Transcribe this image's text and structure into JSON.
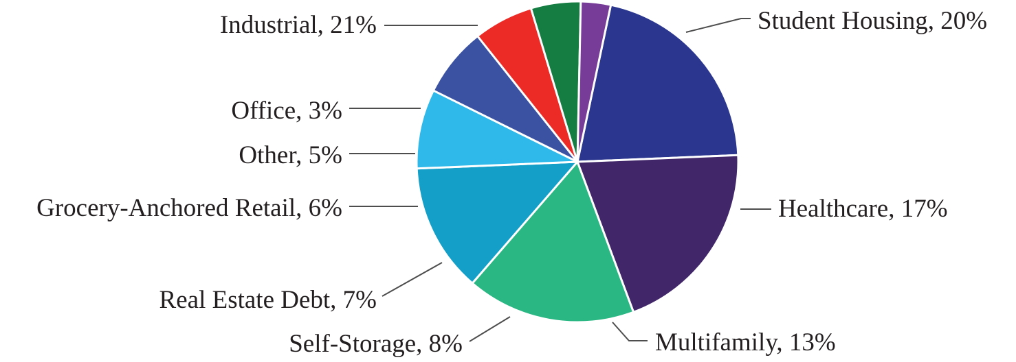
{
  "chart_data": {
    "type": "pie",
    "slices": [
      {
        "label": "Industrial, 21%",
        "category": "Industrial",
        "value": 21,
        "color": "#2b368e"
      },
      {
        "label": "Student Housing, 20%",
        "category": "Student Housing",
        "value": 20,
        "color": "#41276a"
      },
      {
        "label": "Healthcare, 17%",
        "category": "Healthcare",
        "value": 17,
        "color": "#2ab784"
      },
      {
        "label": "Multifamily, 13%",
        "category": "Multifamily",
        "value": 13,
        "color": "#139fc8"
      },
      {
        "label": "Self-Storage, 8%",
        "category": "Self-Storage",
        "value": 8,
        "color": "#2eb9ea"
      },
      {
        "label": "Real Estate Debt, 7%",
        "category": "Real Estate Debt",
        "value": 7,
        "color": "#3a52a1"
      },
      {
        "label": "Grocery-Anchored Retail, 6%",
        "category": "Grocery-Anchored Retail",
        "value": 6,
        "color": "#ec2b27"
      },
      {
        "label": "Other, 5%",
        "category": "Other",
        "value": 5,
        "color": "#157d41"
      },
      {
        "label": "Office, 3%",
        "category": "Office",
        "value": 3,
        "color": "#773c98"
      }
    ],
    "start_angle_deg": 12,
    "direction": "clockwise",
    "legend": "none",
    "title": ""
  }
}
